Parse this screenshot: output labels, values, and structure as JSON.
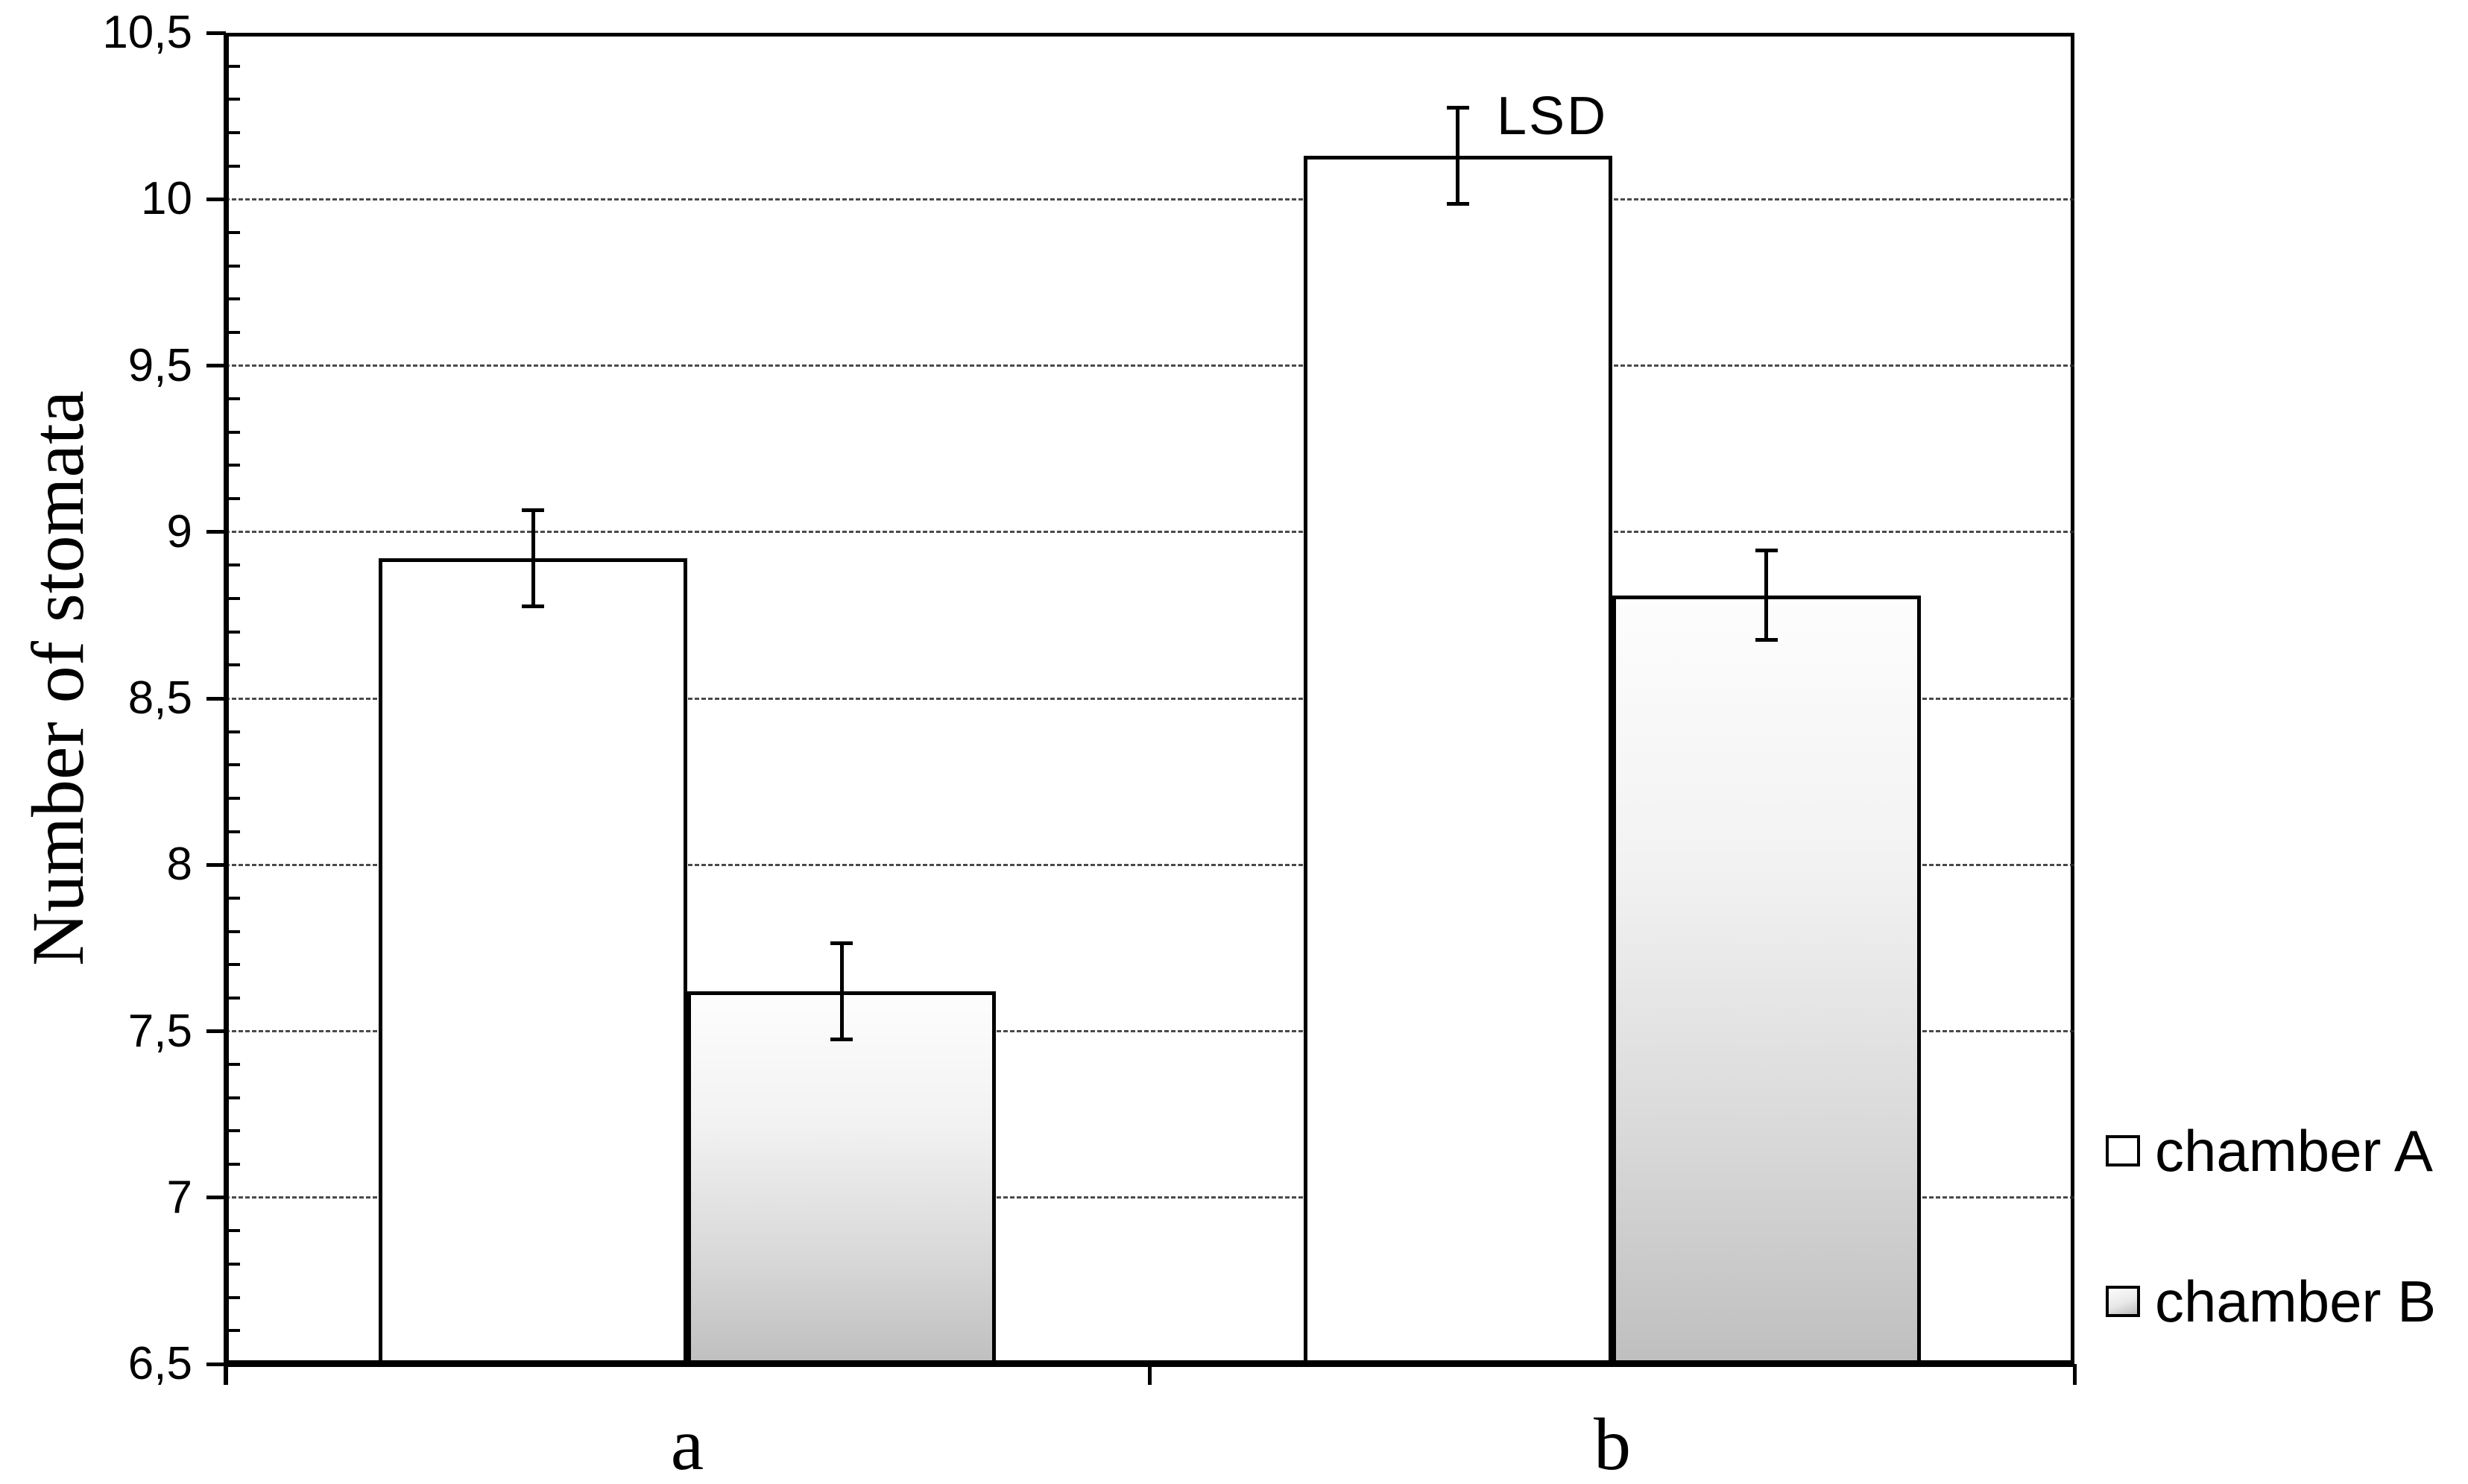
{
  "chart_data": {
    "type": "bar",
    "title": "",
    "xlabel": "",
    "ylabel": "Number of stomata",
    "categories": [
      "a",
      "b"
    ],
    "series": [
      {
        "name": "chamber A",
        "values": [
          8.92,
          10.13
        ],
        "errors": [
          0.15,
          0.15
        ],
        "fill": "white"
      },
      {
        "name": "chamber B",
        "values": [
          7.62,
          8.81
        ],
        "errors": [
          0.15,
          0.14
        ],
        "fill": "gray-gradient"
      }
    ],
    "ylim": [
      6.5,
      10.5
    ],
    "yticks": [
      {
        "value": 6.5,
        "label": "6,5"
      },
      {
        "value": 7,
        "label": "7"
      },
      {
        "value": 7.5,
        "label": "7,5"
      },
      {
        "value": 8,
        "label": "8"
      },
      {
        "value": 8.5,
        "label": "8,5"
      },
      {
        "value": 9,
        "label": "9"
      },
      {
        "value": 9.5,
        "label": "9,5"
      },
      {
        "value": 10,
        "label": "10"
      },
      {
        "value": 10.5,
        "label": "10,5"
      }
    ],
    "minor_tick_step": 0.1,
    "grid": "horizontal dashed lines at 0.5 intervals from 7 to 10",
    "legend_position": "right outside",
    "decimal_separator": ",",
    "annotation": {
      "text": "LSD",
      "attached_to": "error bar of chamber A in category b"
    }
  },
  "legend": {
    "items": [
      {
        "label": "chamber A",
        "swatch": "white"
      },
      {
        "label": "chamber B",
        "swatch": "gray-gradient"
      }
    ]
  }
}
